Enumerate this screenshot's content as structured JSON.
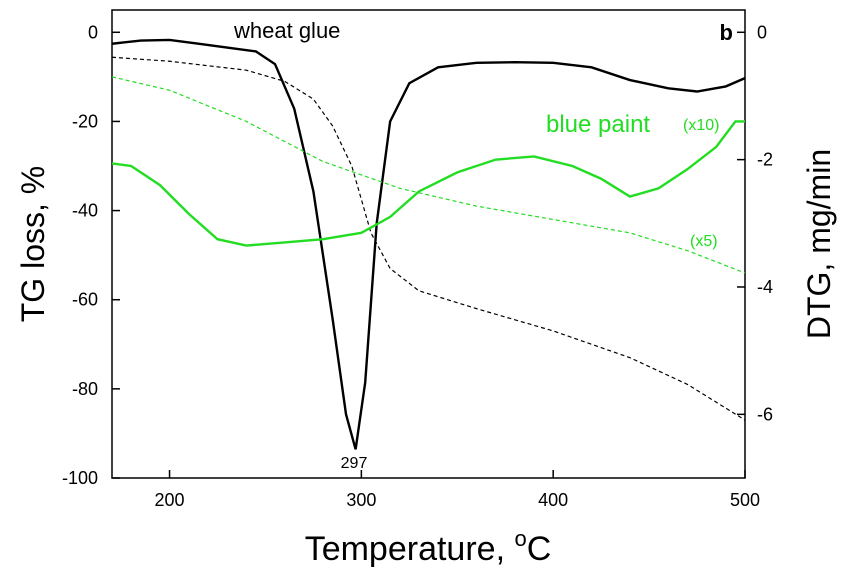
{
  "chart_data": {
    "type": "line",
    "xlabel": [
      "Temperature, ",
      "o",
      "C"
    ],
    "ylabel": "TG loss, %",
    "y2label": "DTG, mg/min",
    "panel_label": "b",
    "xlim": [
      170,
      500
    ],
    "xticks": [
      200,
      300,
      400,
      500
    ],
    "ylim": [
      -100,
      5
    ],
    "yticks": [
      0,
      -20,
      -40,
      -60,
      -80,
      -100
    ],
    "y2lim": [
      -7,
      0.35
    ],
    "y2ticks": [
      0,
      -2,
      -4,
      -6
    ],
    "series": [
      {
        "name": "wheat glue",
        "color": "#000000",
        "style": "solid",
        "axis": "y2",
        "x": [
          170,
          185,
          200,
          215,
          230,
          245,
          255,
          265,
          275,
          285,
          292,
          297,
          302,
          308,
          315,
          325,
          340,
          360,
          380,
          400,
          420,
          440,
          460,
          475,
          490,
          500
        ],
        "values": [
          -0.18,
          -0.13,
          -0.12,
          -0.18,
          -0.24,
          -0.3,
          -0.5,
          -1.2,
          -2.5,
          -4.5,
          -6.0,
          -6.55,
          -5.5,
          -3.0,
          -1.4,
          -0.8,
          -0.55,
          -0.48,
          -0.47,
          -0.48,
          -0.55,
          -0.75,
          -0.88,
          -0.93,
          -0.85,
          -0.72
        ]
      },
      {
        "color": "#000000",
        "style": "dashed",
        "axis": "y",
        "x": [
          170,
          200,
          240,
          260,
          275,
          285,
          295,
          305,
          315,
          330,
          360,
          400,
          440,
          470,
          500
        ],
        "values": [
          -5.6,
          -6.5,
          -8.5,
          -11,
          -15,
          -21,
          -30,
          -45,
          -53,
          -58,
          -62,
          -67,
          -73,
          -79,
          -87
        ]
      },
      {
        "name": "blue paint",
        "color": "#22dd22",
        "style": "solid",
        "axis": "y2",
        "x": [
          170,
          180,
          195,
          210,
          225,
          240,
          260,
          280,
          300,
          315,
          330,
          350,
          370,
          390,
          410,
          425,
          440,
          455,
          470,
          485,
          495,
          500
        ],
        "values": [
          -2.06,
          -2.1,
          -2.4,
          -2.85,
          -3.25,
          -3.35,
          -3.3,
          -3.25,
          -3.15,
          -2.9,
          -2.5,
          -2.2,
          -2.0,
          -1.95,
          -2.1,
          -2.3,
          -2.58,
          -2.45,
          -2.15,
          -1.8,
          -1.4,
          -1.4
        ]
      },
      {
        "color": "#22dd22",
        "style": "dashed",
        "axis": "y",
        "x": [
          170,
          200,
          240,
          280,
          320,
          360,
          400,
          440,
          470,
          500
        ],
        "values": [
          -10,
          -13,
          -20,
          -29,
          -35,
          -39,
          -42,
          -45,
          -49,
          -54
        ]
      }
    ],
    "annotations": [
      "(x10)",
      "(x5)",
      "297"
    ]
  }
}
